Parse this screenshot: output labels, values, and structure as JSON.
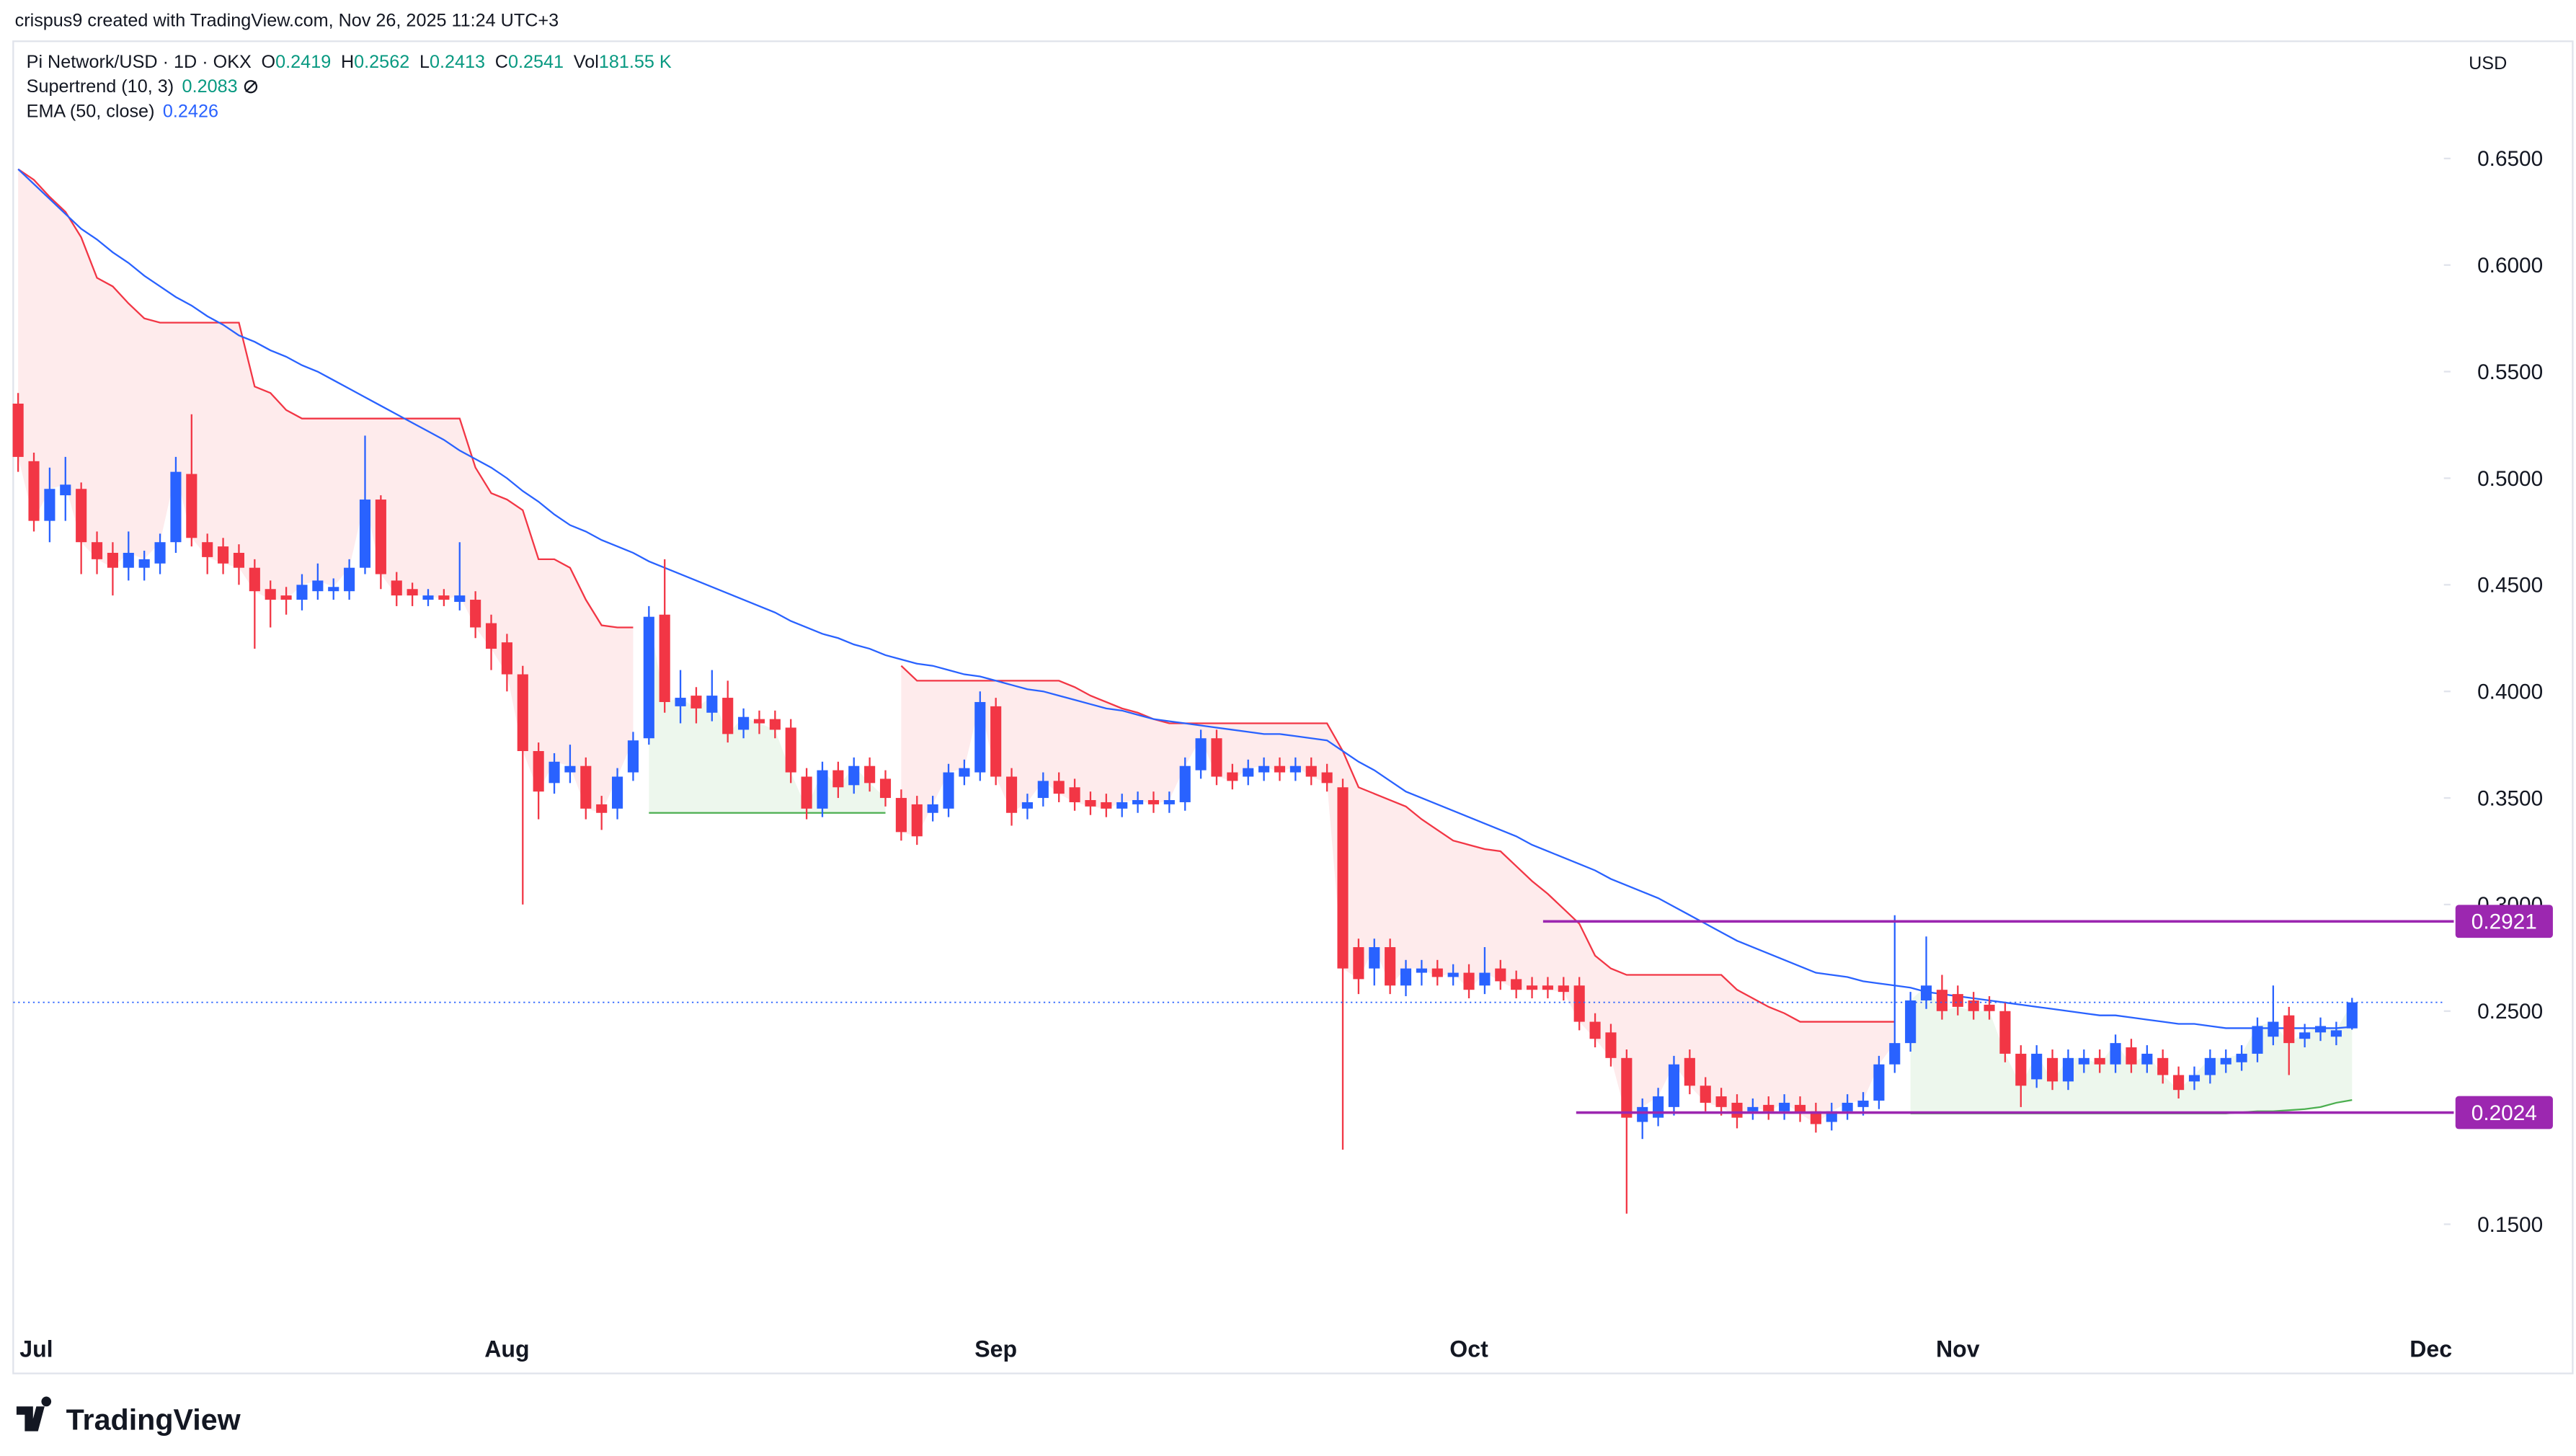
{
  "header": {
    "credit": "crispus9 created with TradingView.com, Nov 26, 2025 11:24 UTC+3",
    "currency": "USD",
    "logo": "TradingView"
  },
  "chart_data": {
    "type": "candlestick",
    "title": "Pi Network/USD · 1D · OKX",
    "legend": [
      {
        "label": "O",
        "value": 0.2419
      },
      {
        "label": "H",
        "value": 0.2562
      },
      {
        "label": "L",
        "value": 0.2413
      },
      {
        "label": "C",
        "value": 0.2541
      },
      {
        "label": "Vol",
        "value": "181.55 K"
      }
    ],
    "legend_color": "#089981",
    "up_color": "#2962ff",
    "down_color": "#f23645",
    "categories": [
      "Jul",
      null,
      null,
      null,
      null,
      null,
      null,
      null,
      null,
      null,
      null,
      null,
      null,
      null,
      null,
      null,
      null,
      null,
      null,
      null,
      null,
      null,
      null,
      null,
      null,
      null,
      null,
      null,
      null,
      null,
      null,
      "Aug",
      null,
      null,
      null,
      null,
      null,
      null,
      null,
      null,
      null,
      null,
      null,
      null,
      null,
      null,
      null,
      null,
      null,
      null,
      null,
      null,
      null,
      null,
      null,
      null,
      null,
      null,
      null,
      null,
      null,
      null,
      "Sep",
      null,
      null,
      null,
      null,
      null,
      null,
      null,
      null,
      null,
      null,
      null,
      null,
      null,
      null,
      null,
      null,
      null,
      null,
      null,
      null,
      null,
      null,
      null,
      null,
      null,
      null,
      null,
      null,
      null,
      "Oct",
      null,
      null,
      null,
      null,
      null,
      null,
      null,
      null,
      null,
      null,
      null,
      null,
      null,
      null,
      null,
      null,
      null,
      null,
      null,
      null,
      null,
      null,
      null,
      null,
      null,
      null,
      null,
      null,
      null,
      null,
      "Nov",
      null,
      null,
      null,
      null,
      null,
      null,
      null,
      null,
      null,
      null,
      null,
      null,
      null,
      null,
      null,
      null,
      null,
      null,
      null,
      null,
      null,
      null,
      null,
      null,
      null,
      null,
      null,
      null,
      null,
      "Dec"
    ],
    "open": [
      0.535,
      0.508,
      0.48,
      0.492,
      0.495,
      0.47,
      0.465,
      0.458,
      0.458,
      0.46,
      0.47,
      0.502,
      0.47,
      0.468,
      0.465,
      0.458,
      0.448,
      0.445,
      0.443,
      0.447,
      0.447,
      0.447,
      0.458,
      0.49,
      0.452,
      0.448,
      0.443,
      0.445,
      0.442,
      0.443,
      0.432,
      0.423,
      0.408,
      0.372,
      0.357,
      0.362,
      0.365,
      0.347,
      0.345,
      0.362,
      0.378,
      0.436,
      0.393,
      0.398,
      0.39,
      0.397,
      0.382,
      0.387,
      0.387,
      0.383,
      0.36,
      0.345,
      0.363,
      0.356,
      0.365,
      0.359,
      0.35,
      0.347,
      0.343,
      0.345,
      0.36,
      0.362,
      0.393,
      0.36,
      0.345,
      0.35,
      0.358,
      0.355,
      0.349,
      0.348,
      0.345,
      0.347,
      0.349,
      0.347,
      0.348,
      0.363,
      0.378,
      0.362,
      0.36,
      0.362,
      0.365,
      0.362,
      0.365,
      0.362,
      0.355,
      0.28,
      0.27,
      0.28,
      0.262,
      0.268,
      0.27,
      0.266,
      0.268,
      0.262,
      0.27,
      0.265,
      0.262,
      0.262,
      0.262,
      0.262,
      0.245,
      0.24,
      0.228,
      0.198,
      0.2,
      0.205,
      0.228,
      0.215,
      0.21,
      0.207,
      0.203,
      0.206,
      0.203,
      0.206,
      0.203,
      0.198,
      0.203,
      0.205,
      0.208,
      0.225,
      0.235,
      0.255,
      0.26,
      0.258,
      0.255,
      0.253,
      0.25,
      0.23,
      0.218,
      0.228,
      0.217,
      0.225,
      0.228,
      0.225,
      0.233,
      0.225,
      0.228,
      0.22,
      0.217,
      0.22,
      0.225,
      0.226,
      0.23,
      0.238,
      0.248,
      0.237,
      0.24,
      0.238,
      0.2419,
      null,
      null,
      null,
      null,
      null
    ],
    "high": [
      0.54,
      0.512,
      0.505,
      0.51,
      0.498,
      0.475,
      0.47,
      0.475,
      0.466,
      0.474,
      0.51,
      0.53,
      0.474,
      0.472,
      0.469,
      0.462,
      0.452,
      0.449,
      0.455,
      0.46,
      0.453,
      0.462,
      0.52,
      0.492,
      0.456,
      0.451,
      0.448,
      0.448,
      0.47,
      0.447,
      0.436,
      0.427,
      0.412,
      0.376,
      0.371,
      0.375,
      0.369,
      0.351,
      0.364,
      0.381,
      0.44,
      0.462,
      0.41,
      0.402,
      0.41,
      0.405,
      0.392,
      0.391,
      0.391,
      0.387,
      0.364,
      0.367,
      0.367,
      0.369,
      0.369,
      0.363,
      0.354,
      0.351,
      0.351,
      0.366,
      0.368,
      0.4,
      0.397,
      0.364,
      0.352,
      0.362,
      0.362,
      0.359,
      0.353,
      0.352,
      0.352,
      0.353,
      0.353,
      0.353,
      0.369,
      0.382,
      0.382,
      0.366,
      0.368,
      0.369,
      0.369,
      0.369,
      0.369,
      0.366,
      0.359,
      0.284,
      0.284,
      0.284,
      0.274,
      0.274,
      0.274,
      0.272,
      0.272,
      0.28,
      0.274,
      0.269,
      0.266,
      0.266,
      0.266,
      0.266,
      0.249,
      0.244,
      0.232,
      0.209,
      0.214,
      0.229,
      0.232,
      0.219,
      0.214,
      0.211,
      0.209,
      0.21,
      0.211,
      0.21,
      0.207,
      0.207,
      0.211,
      0.212,
      0.229,
      0.295,
      0.259,
      0.285,
      0.267,
      0.262,
      0.259,
      0.257,
      0.254,
      0.234,
      0.234,
      0.232,
      0.232,
      0.232,
      0.232,
      0.239,
      0.237,
      0.234,
      0.232,
      0.224,
      0.224,
      0.232,
      0.232,
      0.234,
      0.247,
      0.262,
      0.252,
      0.244,
      0.247,
      0.245,
      0.2562,
      null,
      null,
      null,
      null,
      null
    ],
    "low": [
      0.503,
      0.475,
      0.47,
      0.48,
      0.455,
      0.455,
      0.445,
      0.452,
      0.452,
      0.455,
      0.465,
      0.468,
      0.455,
      0.455,
      0.45,
      0.42,
      0.43,
      0.436,
      0.438,
      0.443,
      0.443,
      0.443,
      0.455,
      0.448,
      0.44,
      0.44,
      0.44,
      0.44,
      0.438,
      0.425,
      0.41,
      0.4,
      0.3,
      0.34,
      0.352,
      0.357,
      0.34,
      0.335,
      0.34,
      0.358,
      0.375,
      0.39,
      0.385,
      0.385,
      0.386,
      0.376,
      0.378,
      0.38,
      0.378,
      0.357,
      0.34,
      0.341,
      0.35,
      0.352,
      0.353,
      0.346,
      0.33,
      0.328,
      0.339,
      0.341,
      0.356,
      0.358,
      0.356,
      0.337,
      0.34,
      0.346,
      0.348,
      0.344,
      0.342,
      0.341,
      0.341,
      0.343,
      0.343,
      0.343,
      0.344,
      0.359,
      0.356,
      0.354,
      0.356,
      0.358,
      0.358,
      0.358,
      0.356,
      0.353,
      0.185,
      0.258,
      0.262,
      0.258,
      0.257,
      0.262,
      0.262,
      0.262,
      0.256,
      0.258,
      0.26,
      0.256,
      0.256,
      0.256,
      0.255,
      0.241,
      0.233,
      0.224,
      0.155,
      0.19,
      0.196,
      0.201,
      0.211,
      0.203,
      0.201,
      0.195,
      0.199,
      0.199,
      0.199,
      0.198,
      0.193,
      0.194,
      0.199,
      0.201,
      0.204,
      0.221,
      0.231,
      0.251,
      0.246,
      0.248,
      0.246,
      0.246,
      0.226,
      0.205,
      0.214,
      0.213,
      0.213,
      0.221,
      0.221,
      0.221,
      0.221,
      0.221,
      0.216,
      0.209,
      0.213,
      0.216,
      0.221,
      0.222,
      0.226,
      0.234,
      0.22,
      0.233,
      0.236,
      0.234,
      0.2413,
      null,
      null,
      null,
      null,
      null
    ],
    "close": [
      0.51,
      0.48,
      0.495,
      0.497,
      0.47,
      0.462,
      0.458,
      0.465,
      0.462,
      0.47,
      0.503,
      0.472,
      0.463,
      0.46,
      0.458,
      0.447,
      0.443,
      0.443,
      0.45,
      0.452,
      0.449,
      0.458,
      0.49,
      0.455,
      0.445,
      0.445,
      0.445,
      0.443,
      0.445,
      0.43,
      0.42,
      0.408,
      0.372,
      0.353,
      0.367,
      0.365,
      0.345,
      0.343,
      0.36,
      0.377,
      0.435,
      0.395,
      0.397,
      0.392,
      0.398,
      0.38,
      0.388,
      0.385,
      0.382,
      0.362,
      0.345,
      0.363,
      0.355,
      0.365,
      0.357,
      0.35,
      0.334,
      0.332,
      0.347,
      0.362,
      0.364,
      0.395,
      0.36,
      0.343,
      0.348,
      0.358,
      0.352,
      0.348,
      0.346,
      0.345,
      0.348,
      0.349,
      0.347,
      0.349,
      0.365,
      0.378,
      0.36,
      0.358,
      0.364,
      0.365,
      0.362,
      0.365,
      0.36,
      0.357,
      0.27,
      0.265,
      0.28,
      0.262,
      0.27,
      0.27,
      0.266,
      0.268,
      0.26,
      0.268,
      0.264,
      0.26,
      0.26,
      0.26,
      0.259,
      0.245,
      0.237,
      0.228,
      0.2,
      0.205,
      0.21,
      0.225,
      0.215,
      0.207,
      0.205,
      0.2,
      0.205,
      0.203,
      0.207,
      0.202,
      0.197,
      0.203,
      0.207,
      0.208,
      0.225,
      0.235,
      0.255,
      0.262,
      0.25,
      0.252,
      0.25,
      0.25,
      0.23,
      0.215,
      0.23,
      0.217,
      0.228,
      0.228,
      0.225,
      0.235,
      0.225,
      0.23,
      0.22,
      0.213,
      0.22,
      0.228,
      0.228,
      0.23,
      0.243,
      0.245,
      0.235,
      0.24,
      0.243,
      0.241,
      0.2541,
      null,
      null,
      null,
      null,
      null
    ],
    "indicators": [
      {
        "type": "supertrend",
        "name": "Supertrend (10, 3)",
        "value": 0.2083,
        "value_color": "#089981",
        "down_color": "#f23645",
        "up_color": "#4caf50",
        "down": [
          0.645,
          0.64,
          0.632,
          0.625,
          0.613,
          0.594,
          0.59,
          0.582,
          0.575,
          0.573,
          0.573,
          0.573,
          0.573,
          0.573,
          0.573,
          0.543,
          0.54,
          0.532,
          0.528,
          0.528,
          0.528,
          0.528,
          0.528,
          0.528,
          0.528,
          0.528,
          0.528,
          0.528,
          0.528,
          0.505,
          0.493,
          0.49,
          0.485,
          0.462,
          0.462,
          0.458,
          0.443,
          0.431,
          0.43,
          0.43,
          null,
          null,
          null,
          null,
          null,
          null,
          null,
          null,
          null,
          null,
          null,
          null,
          null,
          null,
          null,
          null,
          0.412,
          0.405,
          0.405,
          0.405,
          0.405,
          0.405,
          0.405,
          0.405,
          0.405,
          0.405,
          0.405,
          0.402,
          0.398,
          0.395,
          0.392,
          0.39,
          0.387,
          0.385,
          0.385,
          0.385,
          0.385,
          0.385,
          0.385,
          0.385,
          0.385,
          0.385,
          0.385,
          0.385,
          0.372,
          0.355,
          0.352,
          0.349,
          0.346,
          0.34,
          0.335,
          0.33,
          0.328,
          0.326,
          0.325,
          0.318,
          0.311,
          0.305,
          0.298,
          0.291,
          0.276,
          0.27,
          0.267,
          0.267,
          0.267,
          0.267,
          0.267,
          0.267,
          0.267,
          0.26,
          0.256,
          0.252,
          0.249,
          0.245,
          0.245,
          0.245,
          0.245,
          0.245,
          0.245,
          0.245,
          null,
          null,
          null,
          null,
          null,
          null,
          null,
          null,
          null,
          null,
          null,
          null,
          null,
          null,
          null,
          null,
          null,
          null,
          null,
          null,
          null,
          null,
          null,
          null,
          null,
          null,
          null,
          null,
          null,
          null,
          null,
          null,
          null,
          null
        ],
        "up": [
          null,
          null,
          null,
          null,
          null,
          null,
          null,
          null,
          null,
          null,
          null,
          null,
          null,
          null,
          null,
          null,
          null,
          null,
          null,
          null,
          null,
          null,
          null,
          null,
          null,
          null,
          null,
          null,
          null,
          null,
          null,
          null,
          null,
          null,
          null,
          null,
          null,
          null,
          null,
          null,
          0.343,
          0.343,
          0.343,
          0.343,
          0.343,
          0.343,
          0.343,
          0.343,
          0.343,
          0.343,
          0.343,
          0.343,
          0.343,
          0.343,
          0.343,
          0.343,
          null,
          null,
          null,
          null,
          null,
          null,
          null,
          null,
          null,
          null,
          null,
          null,
          null,
          null,
          null,
          null,
          null,
          null,
          null,
          null,
          null,
          null,
          null,
          null,
          null,
          null,
          null,
          null,
          null,
          null,
          null,
          null,
          null,
          null,
          null,
          null,
          null,
          null,
          null,
          null,
          null,
          null,
          null,
          null,
          null,
          null,
          null,
          null,
          null,
          null,
          null,
          null,
          null,
          null,
          null,
          null,
          null,
          null,
          null,
          null,
          null,
          null,
          null,
          null,
          0.202,
          0.202,
          0.202,
          0.202,
          0.202,
          0.202,
          0.202,
          0.202,
          0.202,
          0.202,
          0.202,
          0.202,
          0.202,
          0.202,
          0.202,
          0.202,
          0.202,
          0.202,
          0.202,
          0.202,
          0.202,
          0.2025,
          0.203,
          0.203,
          0.2035,
          0.204,
          0.205,
          0.207,
          0.2083,
          null,
          null,
          null,
          null,
          null
        ]
      },
      {
        "type": "line",
        "name": "EMA (50, close)",
        "value": 0.2426,
        "value_color": "#2962ff",
        "color": "#2962ff",
        "values": [
          0.645,
          0.638,
          0.631,
          0.624,
          0.617,
          0.612,
          0.606,
          0.601,
          0.595,
          0.59,
          0.585,
          0.581,
          0.576,
          0.572,
          0.567,
          0.564,
          0.56,
          0.557,
          0.553,
          0.55,
          0.546,
          0.542,
          0.538,
          0.534,
          0.53,
          0.526,
          0.522,
          0.518,
          0.513,
          0.509,
          0.505,
          0.5,
          0.494,
          0.489,
          0.483,
          0.478,
          0.475,
          0.471,
          0.468,
          0.465,
          0.461,
          0.458,
          0.455,
          0.452,
          0.449,
          0.446,
          0.443,
          0.44,
          0.437,
          0.433,
          0.43,
          0.427,
          0.425,
          0.422,
          0.42,
          0.417,
          0.415,
          0.413,
          0.412,
          0.41,
          0.408,
          0.407,
          0.405,
          0.403,
          0.401,
          0.4,
          0.398,
          0.396,
          0.394,
          0.392,
          0.391,
          0.389,
          0.387,
          0.386,
          0.385,
          0.384,
          0.383,
          0.382,
          0.381,
          0.38,
          0.38,
          0.379,
          0.378,
          0.377,
          0.372,
          0.367,
          0.363,
          0.358,
          0.353,
          0.35,
          0.347,
          0.344,
          0.341,
          0.338,
          0.335,
          0.332,
          0.328,
          0.325,
          0.322,
          0.319,
          0.316,
          0.312,
          0.309,
          0.306,
          0.303,
          0.299,
          0.295,
          0.291,
          0.287,
          0.283,
          0.28,
          0.277,
          0.274,
          0.271,
          0.268,
          0.267,
          0.266,
          0.264,
          0.263,
          0.262,
          0.261,
          0.259,
          0.258,
          0.257,
          0.256,
          0.255,
          0.254,
          0.253,
          0.252,
          0.251,
          0.25,
          0.249,
          0.248,
          0.248,
          0.247,
          0.246,
          0.245,
          0.244,
          0.244,
          0.243,
          0.242,
          0.242,
          0.242,
          0.242,
          0.242,
          0.242,
          0.242,
          0.242,
          0.2426,
          null,
          null,
          null,
          null,
          null
        ]
      }
    ],
    "levels": [
      {
        "value": 0.2921,
        "color": "#9c27b0"
      },
      {
        "value": 0.2024,
        "color": "#9c27b0"
      }
    ],
    "ylim": [
      0.08,
      0.705
    ],
    "yticks": [
      {
        "value": 0.15,
        "label": "0.1500"
      },
      {
        "value": 0.25,
        "label": "0.2500"
      },
      {
        "value": 0.3,
        "label": "0.3000"
      },
      {
        "value": 0.35,
        "label": "0.3500"
      },
      {
        "value": 0.4,
        "label": "0.4000"
      },
      {
        "value": 0.45,
        "label": "0.4500"
      },
      {
        "value": 0.5,
        "label": "0.5000"
      },
      {
        "value": 0.55,
        "label": "0.5500"
      },
      {
        "value": 0.6,
        "label": "0.6000"
      },
      {
        "value": 0.65,
        "label": "0.6500"
      }
    ],
    "grid": false
  }
}
